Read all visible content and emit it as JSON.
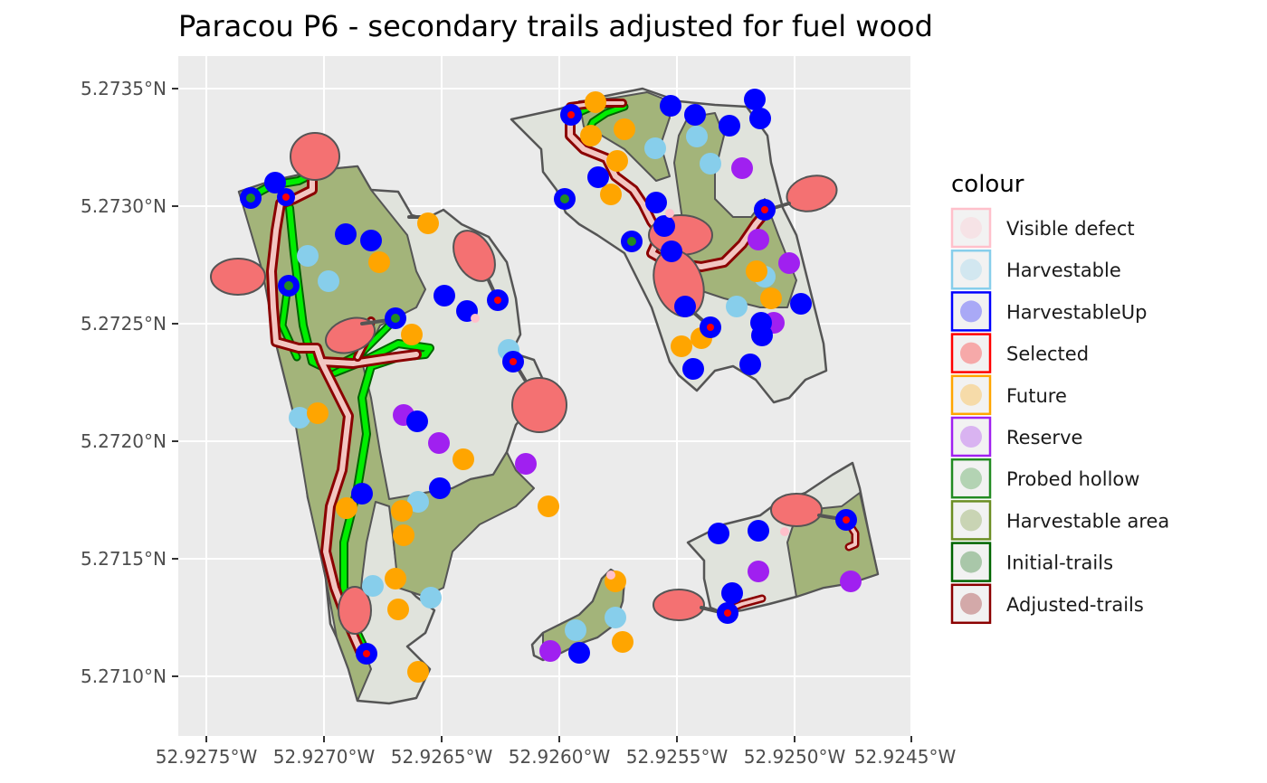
{
  "title": "Paracou P6 - secondary trails adjusted for fuel wood",
  "axes": {
    "x_ticks": [
      "52.9275°W",
      "52.9270°W",
      "52.9265°W",
      "52.9260°W",
      "52.9255°W",
      "52.9250°W",
      "52.9245°W"
    ],
    "y_ticks": [
      "5.2735°N",
      "5.2730°N",
      "5.2725°N",
      "5.2720°N",
      "5.2715°N",
      "5.2710°N"
    ]
  },
  "legend": {
    "title": "colour",
    "items": [
      {
        "label": "Visible defect",
        "color": "#ffc0cb"
      },
      {
        "label": "Harvestable",
        "color": "#87ceeb"
      },
      {
        "label": "HarvestableUp",
        "color": "#0000ff"
      },
      {
        "label": "Selected",
        "color": "#ff0000"
      },
      {
        "label": "Future",
        "color": "#ffa500"
      },
      {
        "label": "Reserve",
        "color": "#a020f0"
      },
      {
        "label": "Probed hollow",
        "color": "#228b22"
      },
      {
        "label": "Harvestable area",
        "color": "#6b8e23"
      },
      {
        "label": "Initial-trails",
        "color": "#006400"
      },
      {
        "label": "Adjusted-trails",
        "color": "#8b0000"
      }
    ]
  },
  "colors": {
    "panel_bg": "#ebebeb",
    "grid": "#ffffff",
    "plot_fill": "#e0e3dc",
    "harvestable_fill": "#a3b47a",
    "trail_green": "#00ee00",
    "trail_dark": "#8b0000"
  }
}
